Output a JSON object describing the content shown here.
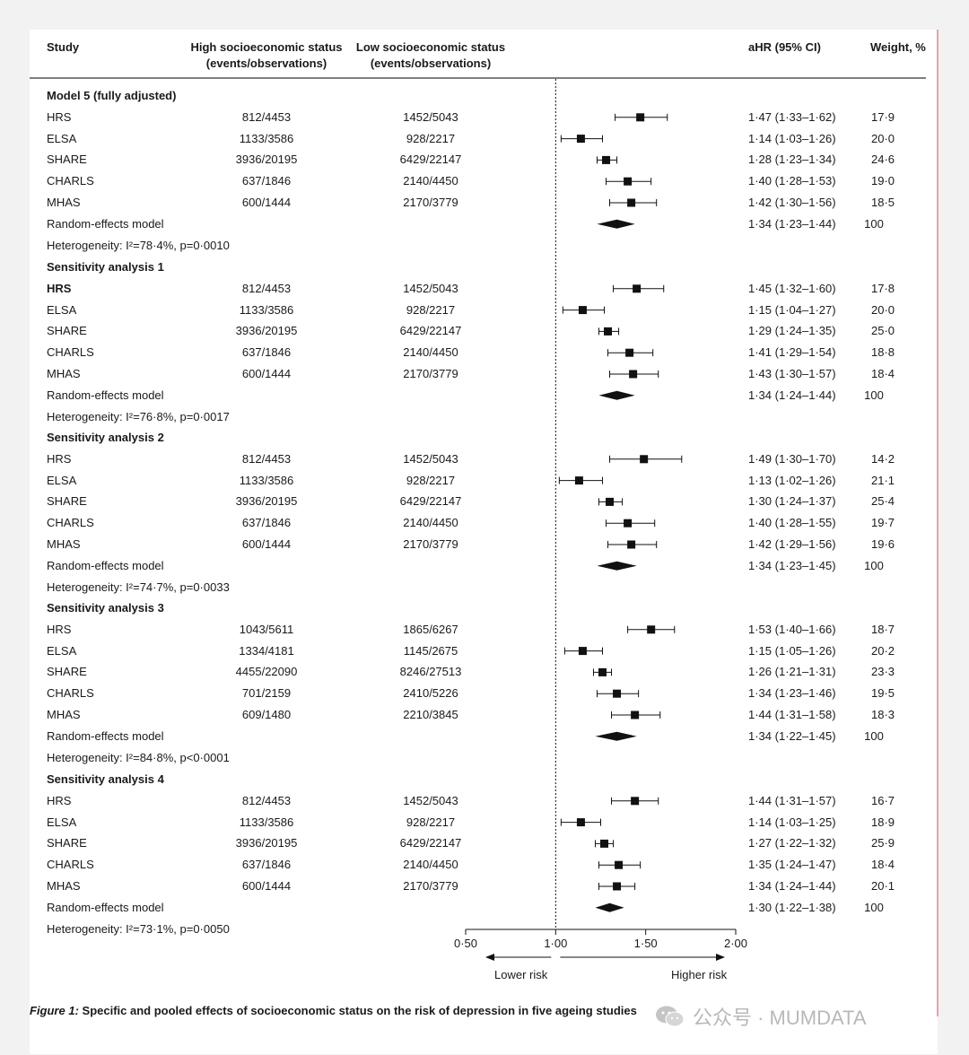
{
  "columns": {
    "study": "Study",
    "high_line1": "High socioeconomic status",
    "high_line2": "(events/observations)",
    "low_line1": "Low socioeconomic status",
    "low_line2": "(events/observations)",
    "ahr": "aHR (95% CI)",
    "weight": "Weight, %"
  },
  "chart_data": {
    "type": "forest",
    "xlim": [
      0.5,
      2.0
    ],
    "x_ticks": [
      "0·50",
      "1·00",
      "1·50",
      "2·00"
    ],
    "x_tick_values": [
      0.5,
      1.0,
      1.5,
      2.0
    ],
    "reference_line": 1.0,
    "arrow_left_label": "Lower risk",
    "arrow_right_label": "Higher risk",
    "sections": [
      {
        "title": "Model 5 (fully adjusted)",
        "heterogeneity": "Heterogeneity: I²=78·4%, p=0·0010",
        "studies": [
          {
            "name": "HRS",
            "high": "812/4453",
            "low": "1452/5043",
            "hr": 1.47,
            "lo": 1.33,
            "hi": 1.62,
            "hr_text": "1·47 (1·33–1·62)",
            "weight": "17·9",
            "bold": false
          },
          {
            "name": "ELSA",
            "high": "1133/3586",
            "low": "928/2217",
            "hr": 1.14,
            "lo": 1.03,
            "hi": 1.26,
            "hr_text": "1·14 (1·03–1·26)",
            "weight": "20·0",
            "bold": false
          },
          {
            "name": "SHARE",
            "high": "3936/20195",
            "low": "6429/22147",
            "hr": 1.28,
            "lo": 1.23,
            "hi": 1.34,
            "hr_text": "1·28 (1·23–1·34)",
            "weight": "24·6",
            "bold": false
          },
          {
            "name": "CHARLS",
            "high": "637/1846",
            "low": "2140/4450",
            "hr": 1.4,
            "lo": 1.28,
            "hi": 1.53,
            "hr_text": "1·40 (1·28–1·53)",
            "weight": "19·0",
            "bold": false
          },
          {
            "name": "MHAS",
            "high": "600/1444",
            "low": "2170/3779",
            "hr": 1.42,
            "lo": 1.3,
            "hi": 1.56,
            "hr_text": "1·42 (1·30–1·56)",
            "weight": "18·5",
            "bold": false
          }
        ],
        "pooled": {
          "name": "Random-effects model",
          "hr": 1.34,
          "lo": 1.23,
          "hi": 1.44,
          "hr_text": "1·34 (1·23–1·44)",
          "weight": "100"
        }
      },
      {
        "title": "Sensitivity analysis 1",
        "heterogeneity": "Heterogeneity: I²=76·8%, p=0·0017",
        "studies": [
          {
            "name": "HRS",
            "high": "812/4453",
            "low": "1452/5043",
            "hr": 1.45,
            "lo": 1.32,
            "hi": 1.6,
            "hr_text": "1·45 (1·32–1·60)",
            "weight": "17·8",
            "bold": true
          },
          {
            "name": "ELSA",
            "high": "1133/3586",
            "low": "928/2217",
            "hr": 1.15,
            "lo": 1.04,
            "hi": 1.27,
            "hr_text": "1·15 (1·04–1·27)",
            "weight": "20·0",
            "bold": false
          },
          {
            "name": "SHARE",
            "high": "3936/20195",
            "low": "6429/22147",
            "hr": 1.29,
            "lo": 1.24,
            "hi": 1.35,
            "hr_text": "1·29 (1·24–1·35)",
            "weight": "25·0",
            "bold": false
          },
          {
            "name": "CHARLS",
            "high": "637/1846",
            "low": "2140/4450",
            "hr": 1.41,
            "lo": 1.29,
            "hi": 1.54,
            "hr_text": "1·41 (1·29–1·54)",
            "weight": "18·8",
            "bold": false
          },
          {
            "name": "MHAS",
            "high": "600/1444",
            "low": "2170/3779",
            "hr": 1.43,
            "lo": 1.3,
            "hi": 1.57,
            "hr_text": "1·43 (1·30–1·57)",
            "weight": "18·4",
            "bold": false
          }
        ],
        "pooled": {
          "name": "Random-effects model",
          "hr": 1.34,
          "lo": 1.24,
          "hi": 1.44,
          "hr_text": "1·34 (1·24–1·44)",
          "weight": "100"
        }
      },
      {
        "title": "Sensitivity analysis 2",
        "heterogeneity": "Heterogeneity: I²=74·7%, p=0·0033",
        "studies": [
          {
            "name": "HRS",
            "high": "812/4453",
            "low": "1452/5043",
            "hr": 1.49,
            "lo": 1.3,
            "hi": 1.7,
            "hr_text": "1·49 (1·30–1·70)",
            "weight": "14·2",
            "bold": false
          },
          {
            "name": "ELSA",
            "high": "1133/3586",
            "low": "928/2217",
            "hr": 1.13,
            "lo": 1.02,
            "hi": 1.26,
            "hr_text": "1·13 (1·02–1·26)",
            "weight": "21·1",
            "bold": false
          },
          {
            "name": "SHARE",
            "high": "3936/20195",
            "low": "6429/22147",
            "hr": 1.3,
            "lo": 1.24,
            "hi": 1.37,
            "hr_text": "1·30 (1·24–1·37)",
            "weight": "25·4",
            "bold": false
          },
          {
            "name": "CHARLS",
            "high": "637/1846",
            "low": "2140/4450",
            "hr": 1.4,
            "lo": 1.28,
            "hi": 1.55,
            "hr_text": "1·40 (1·28–1·55)",
            "weight": "19·7",
            "bold": false
          },
          {
            "name": "MHAS",
            "high": "600/1444",
            "low": "2170/3779",
            "hr": 1.42,
            "lo": 1.29,
            "hi": 1.56,
            "hr_text": "1·42 (1·29–1·56)",
            "weight": "19·6",
            "bold": false
          }
        ],
        "pooled": {
          "name": "Random-effects model",
          "hr": 1.34,
          "lo": 1.23,
          "hi": 1.45,
          "hr_text": "1·34 (1·23–1·45)",
          "weight": "100"
        }
      },
      {
        "title": "Sensitivity analysis 3",
        "heterogeneity": "Heterogeneity: I²=84·8%, p<0·0001",
        "studies": [
          {
            "name": "HRS",
            "high": "1043/5611",
            "low": "1865/6267",
            "hr": 1.53,
            "lo": 1.4,
            "hi": 1.66,
            "hr_text": "1·53 (1·40–1·66)",
            "weight": "18·7",
            "bold": false
          },
          {
            "name": "ELSA",
            "high": "1334/4181",
            "low": "1145/2675",
            "hr": 1.15,
            "lo": 1.05,
            "hi": 1.26,
            "hr_text": "1·15 (1·05–1·26)",
            "weight": "20·2",
            "bold": false
          },
          {
            "name": "SHARE",
            "high": "4455/22090",
            "low": "8246/27513",
            "hr": 1.26,
            "lo": 1.21,
            "hi": 1.31,
            "hr_text": "1·26 (1·21–1·31)",
            "weight": "23·3",
            "bold": false
          },
          {
            "name": "CHARLS",
            "high": "701/2159",
            "low": "2410/5226",
            "hr": 1.34,
            "lo": 1.23,
            "hi": 1.46,
            "hr_text": "1·34 (1·23–1·46)",
            "weight": "19·5",
            "bold": false
          },
          {
            "name": "MHAS",
            "high": "609/1480",
            "low": "2210/3845",
            "hr": 1.44,
            "lo": 1.31,
            "hi": 1.58,
            "hr_text": "1·44 (1·31–1·58)",
            "weight": "18·3",
            "bold": false
          }
        ],
        "pooled": {
          "name": "Random-effects model",
          "hr": 1.34,
          "lo": 1.22,
          "hi": 1.45,
          "hr_text": "1·34 (1·22–1·45)",
          "weight": "100"
        }
      },
      {
        "title": "Sensitivity analysis 4",
        "heterogeneity": "Heterogeneity: I²=73·1%, p=0·0050",
        "studies": [
          {
            "name": "HRS",
            "high": "812/4453",
            "low": "1452/5043",
            "hr": 1.44,
            "lo": 1.31,
            "hi": 1.57,
            "hr_text": "1·44 (1·31–1·57)",
            "weight": "16·7",
            "bold": false
          },
          {
            "name": "ELSA",
            "high": "1133/3586",
            "low": "928/2217",
            "hr": 1.14,
            "lo": 1.03,
            "hi": 1.25,
            "hr_text": "1·14 (1·03–1·25)",
            "weight": "18·9",
            "bold": false
          },
          {
            "name": "SHARE",
            "high": "3936/20195",
            "low": "6429/22147",
            "hr": 1.27,
            "lo": 1.22,
            "hi": 1.32,
            "hr_text": "1·27 (1·22–1·32)",
            "weight": "25·9",
            "bold": false
          },
          {
            "name": "CHARLS",
            "high": "637/1846",
            "low": "2140/4450",
            "hr": 1.35,
            "lo": 1.24,
            "hi": 1.47,
            "hr_text": "1·35 (1·24–1·47)",
            "weight": "18·4",
            "bold": false
          },
          {
            "name": "MHAS",
            "high": "600/1444",
            "low": "2170/3779",
            "hr": 1.34,
            "lo": 1.24,
            "hi": 1.44,
            "hr_text": "1·34 (1·24–1·44)",
            "weight": "20·1",
            "bold": false
          }
        ],
        "pooled": {
          "name": "Random-effects model",
          "hr": 1.3,
          "lo": 1.22,
          "hi": 1.38,
          "hr_text": "1·30 (1·22–1·38)",
          "weight": "100"
        }
      }
    ]
  },
  "caption": {
    "figure_label": "Figure 1:",
    "text": " Specific and pooled effects of socioeconomic status on the risk of depression in five ageing studies"
  },
  "watermark": {
    "text": "公众号 · MUMDATA"
  }
}
